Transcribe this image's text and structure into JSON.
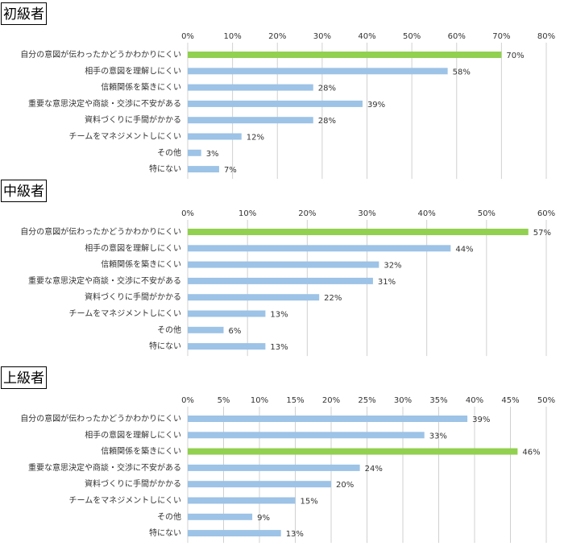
{
  "chart_data": [
    {
      "type": "bar",
      "title": "初級者",
      "categories": [
        "自分の意図が伝わったかどうかわかりにくい",
        "相手の意図を理解しにくい",
        "信頼関係を築きにくい",
        "重要な意思決定や商談・交渉に不安がある",
        "資料づくりに手間がかかる",
        "チームをマネジメントしにくい",
        "その他",
        "特にない"
      ],
      "values": [
        70,
        58,
        28,
        39,
        28,
        12,
        3,
        7
      ],
      "value_labels": [
        "70%",
        "58%",
        "28%",
        "39%",
        "28%",
        "12%",
        "3%",
        "7%"
      ],
      "colors": [
        "#92d050",
        "#9dc3e6",
        "#9dc3e6",
        "#9dc3e6",
        "#9dc3e6",
        "#9dc3e6",
        "#9dc3e6",
        "#9dc3e6"
      ],
      "xlim": [
        0,
        80
      ],
      "xticks": [
        {
          "value": 0,
          "label": "0%"
        },
        {
          "value": 10,
          "label": "10%"
        },
        {
          "value": 20,
          "label": "20%"
        },
        {
          "value": 30,
          "label": "30%"
        },
        {
          "value": 40,
          "label": "40%"
        },
        {
          "value": 50,
          "label": "50%"
        },
        {
          "value": 60,
          "label": "60%"
        },
        {
          "value": 70,
          "label": "70%"
        },
        {
          "value": 80,
          "label": "80%"
        }
      ],
      "grid": true
    },
    {
      "type": "bar",
      "title": "中級者",
      "categories": [
        "自分の意図が伝わったかどうかわかりにくい",
        "相手の意図を理解しにくい",
        "信頼関係を築きにくい",
        "重要な意思決定や商談・交渉に不安がある",
        "資料づくりに手間がかかる",
        "チームをマネジメントしにくい",
        "その他",
        "特にない"
      ],
      "values": [
        57,
        44,
        32,
        31,
        22,
        13,
        6,
        13
      ],
      "value_labels": [
        "57%",
        "44%",
        "32%",
        "31%",
        "22%",
        "13%",
        "6%",
        "13%"
      ],
      "colors": [
        "#92d050",
        "#9dc3e6",
        "#9dc3e6",
        "#9dc3e6",
        "#9dc3e6",
        "#9dc3e6",
        "#9dc3e6",
        "#9dc3e6"
      ],
      "xlim": [
        0,
        60
      ],
      "xticks": [
        {
          "value": 0,
          "label": "0%"
        },
        {
          "value": 10,
          "label": "10%"
        },
        {
          "value": 20,
          "label": "20%"
        },
        {
          "value": 30,
          "label": "30%"
        },
        {
          "value": 40,
          "label": "40%"
        },
        {
          "value": 50,
          "label": "50%"
        },
        {
          "value": 60,
          "label": "60%"
        }
      ],
      "grid": true
    },
    {
      "type": "bar",
      "title": "上級者",
      "categories": [
        "自分の意図が伝わったかどうかわかりにくい",
        "相手の意図を理解しにくい",
        "信頼関係を築きにくい",
        "重要な意思決定や商談・交渉に不安がある",
        "資料づくりに手間がかかる",
        "チームをマネジメントしにくい",
        "その他",
        "特にない"
      ],
      "values": [
        39,
        33,
        46,
        24,
        20,
        15,
        9,
        13
      ],
      "value_labels": [
        "39%",
        "33%",
        "46%",
        "24%",
        "20%",
        "15%",
        "9%",
        "13%"
      ],
      "colors": [
        "#9dc3e6",
        "#9dc3e6",
        "#92d050",
        "#9dc3e6",
        "#9dc3e6",
        "#9dc3e6",
        "#9dc3e6",
        "#9dc3e6"
      ],
      "xlim": [
        0,
        50
      ],
      "xticks": [
        {
          "value": 0,
          "label": "0%"
        },
        {
          "value": 5,
          "label": "5%"
        },
        {
          "value": 10,
          "label": "10%"
        },
        {
          "value": 15,
          "label": "15%"
        },
        {
          "value": 20,
          "label": "20%"
        },
        {
          "value": 25,
          "label": "25%"
        },
        {
          "value": 30,
          "label": "30%"
        },
        {
          "value": 35,
          "label": "35%"
        },
        {
          "value": 40,
          "label": "40%"
        },
        {
          "value": 45,
          "label": "45%"
        },
        {
          "value": 50,
          "label": "50%"
        }
      ],
      "grid": true
    }
  ]
}
